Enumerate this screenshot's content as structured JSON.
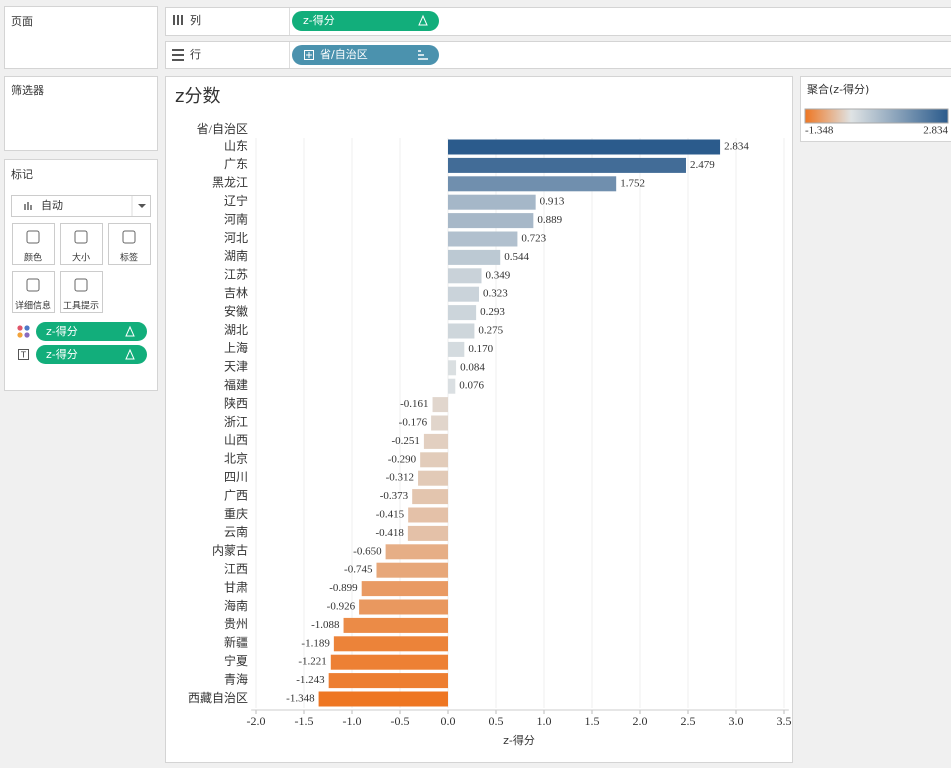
{
  "ui": {
    "pages_title": "页面",
    "filters_title": "筛选器",
    "marks_title": "标记",
    "mark_type": "自动",
    "mark_buttons": [
      "颜色",
      "大小",
      "标签",
      "详细信息",
      "工具提示"
    ],
    "mark_pills": [
      "z-得分",
      "z-得分"
    ],
    "columns_label": "列",
    "rows_label": "行",
    "columns_pill": "z-得分",
    "rows_pill": "省/自治区",
    "legend_title": "聚合(z-得分)"
  },
  "chart_data": {
    "type": "bar",
    "orientation": "horizontal",
    "title": "z分数",
    "y_label": "省/自治区",
    "x_label": "z-得分",
    "categories": [
      "山东",
      "广东",
      "黑龙江",
      "辽宁",
      "河南",
      "河北",
      "湖南",
      "江苏",
      "吉林",
      "安徽",
      "湖北",
      "上海",
      "天津",
      "福建",
      "陕西",
      "浙江",
      "山西",
      "北京",
      "四川",
      "广西",
      "重庆",
      "云南",
      "内蒙古",
      "江西",
      "甘肃",
      "海南",
      "贵州",
      "新疆",
      "宁夏",
      "青海",
      "西藏自治区"
    ],
    "values": [
      2.834,
      2.479,
      1.752,
      0.913,
      0.889,
      0.723,
      0.544,
      0.349,
      0.323,
      0.293,
      0.275,
      0.17,
      0.084,
      0.076,
      -0.161,
      -0.176,
      -0.251,
      -0.29,
      -0.312,
      -0.373,
      -0.415,
      -0.418,
      -0.65,
      -0.745,
      -0.899,
      -0.926,
      -1.088,
      -1.189,
      -1.221,
      -1.243,
      -1.348
    ],
    "value_labels": [
      "2.834",
      "2.479",
      "1.752",
      "0.913",
      "0.889",
      "0.723",
      "0.544",
      "0.349",
      "0.323",
      "0.293",
      "0.275",
      "0.170",
      "0.084",
      "0.076",
      "-0.161",
      "-0.176",
      "-0.251",
      "-0.290",
      "-0.312",
      "-0.373",
      "-0.415",
      "-0.418",
      "-0.650",
      "-0.745",
      "-0.899",
      "-0.926",
      "-1.088",
      "-1.189",
      "-1.221",
      "-1.243",
      "-1.348"
    ],
    "xlim": [
      -2.05,
      3.55
    ],
    "xticks": [
      {
        "value": -2,
        "label": "-2.0"
      },
      {
        "value": -1.5,
        "label": "-1.5"
      },
      {
        "value": -1,
        "label": "-1.0"
      },
      {
        "value": -0.5,
        "label": "-0.5"
      },
      {
        "value": 0,
        "label": "0.0"
      },
      {
        "value": 0.5,
        "label": "0.5"
      },
      {
        "value": 1,
        "label": "1.0"
      },
      {
        "value": 1.5,
        "label": "1.5"
      },
      {
        "value": 2,
        "label": "2.0"
      },
      {
        "value": 2.5,
        "label": "2.5"
      },
      {
        "value": 3,
        "label": "3.0"
      },
      {
        "value": 3.5,
        "label": "3.5"
      }
    ],
    "grid": true,
    "color_scale": {
      "low": "#ee7622",
      "mid": "#dfe3e4",
      "high": "#2b5b8c"
    }
  }
}
